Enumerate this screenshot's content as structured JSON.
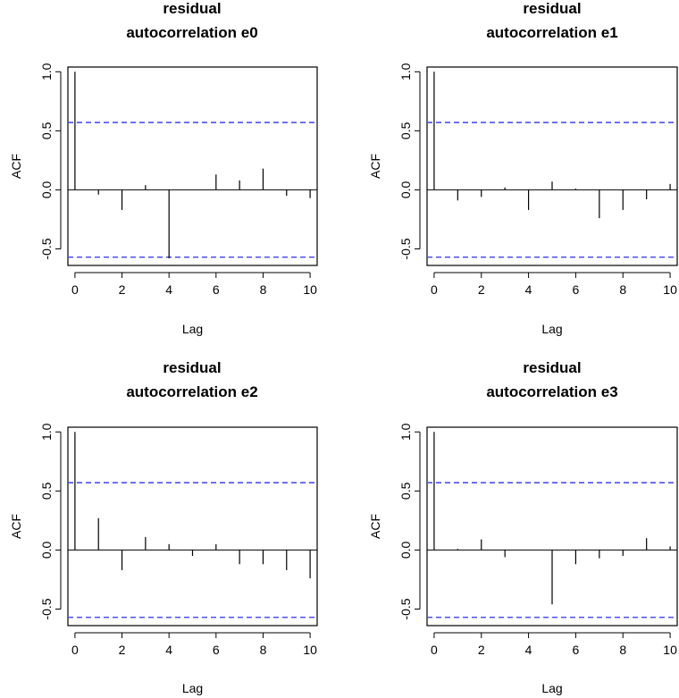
{
  "chart_data": [
    {
      "type": "bar",
      "title_lines": [
        "residual",
        "autocorrelation e0"
      ],
      "xlabel": "Lag",
      "ylabel": "ACF",
      "x": [
        0,
        1,
        2,
        3,
        4,
        5,
        6,
        7,
        8,
        9,
        10
      ],
      "values": [
        1.0,
        -0.04,
        -0.17,
        0.04,
        -0.58,
        0.0,
        0.13,
        0.08,
        0.18,
        -0.05,
        -0.07
      ],
      "confidence_band": [
        -0.57,
        0.57
      ],
      "xlim": [
        -0.3,
        10.3
      ],
      "ylim": [
        -0.64,
        1.04
      ],
      "xticks": [
        0,
        2,
        4,
        6,
        8,
        10
      ],
      "xtick_labels": [
        "0",
        "2",
        "4",
        "6",
        "8",
        "10"
      ],
      "yticks": [
        -0.5,
        0.0,
        0.5,
        1.0
      ],
      "ytick_labels": [
        "-0.5",
        "0.0",
        "0.5",
        "1.0"
      ],
      "grid": false,
      "colors": {
        "band": "#4f4ff5",
        "spike": "#000000"
      }
    },
    {
      "type": "bar",
      "title_lines": [
        "residual",
        "autocorrelation e1"
      ],
      "xlabel": "Lag",
      "ylabel": "ACF",
      "x": [
        0,
        1,
        2,
        3,
        4,
        5,
        6,
        7,
        8,
        9,
        10
      ],
      "values": [
        1.0,
        -0.09,
        -0.06,
        0.02,
        -0.17,
        0.07,
        0.01,
        -0.24,
        -0.17,
        -0.08,
        0.05
      ],
      "confidence_band": [
        -0.57,
        0.57
      ],
      "xlim": [
        -0.3,
        10.3
      ],
      "ylim": [
        -0.64,
        1.04
      ],
      "xticks": [
        0,
        2,
        4,
        6,
        8,
        10
      ],
      "xtick_labels": [
        "0",
        "2",
        "4",
        "6",
        "8",
        "10"
      ],
      "yticks": [
        -0.5,
        0.0,
        0.5,
        1.0
      ],
      "ytick_labels": [
        "-0.5",
        "0.0",
        "0.5",
        "1.0"
      ],
      "grid": false,
      "colors": {
        "band": "#4f4ff5",
        "spike": "#000000"
      }
    },
    {
      "type": "bar",
      "title_lines": [
        "residual",
        "autocorrelation e2"
      ],
      "xlabel": "Lag",
      "ylabel": "ACF",
      "x": [
        0,
        1,
        2,
        3,
        4,
        5,
        6,
        7,
        8,
        9,
        10
      ],
      "values": [
        1.0,
        0.27,
        -0.17,
        0.11,
        0.05,
        -0.05,
        0.05,
        -0.12,
        -0.12,
        -0.17,
        -0.24
      ],
      "confidence_band": [
        -0.57,
        0.57
      ],
      "xlim": [
        -0.3,
        10.3
      ],
      "ylim": [
        -0.64,
        1.04
      ],
      "xticks": [
        0,
        2,
        4,
        6,
        8,
        10
      ],
      "xtick_labels": [
        "0",
        "2",
        "4",
        "6",
        "8",
        "10"
      ],
      "yticks": [
        -0.5,
        0.0,
        0.5,
        1.0
      ],
      "ytick_labels": [
        "-0.5",
        "0.0",
        "0.5",
        "1.0"
      ],
      "grid": false,
      "colors": {
        "band": "#4f4ff5",
        "spike": "#000000"
      }
    },
    {
      "type": "bar",
      "title_lines": [
        "residual",
        "autocorrelation e3"
      ],
      "xlabel": "Lag",
      "ylabel": "ACF",
      "x": [
        0,
        1,
        2,
        3,
        4,
        5,
        6,
        7,
        8,
        9,
        10
      ],
      "values": [
        1.0,
        0.01,
        0.09,
        -0.06,
        0.0,
        -0.46,
        -0.12,
        -0.07,
        -0.05,
        0.1,
        0.03
      ],
      "confidence_band": [
        -0.57,
        0.57
      ],
      "xlim": [
        -0.3,
        10.3
      ],
      "ylim": [
        -0.64,
        1.04
      ],
      "xticks": [
        0,
        2,
        4,
        6,
        8,
        10
      ],
      "xtick_labels": [
        "0",
        "2",
        "4",
        "6",
        "8",
        "10"
      ],
      "yticks": [
        -0.5,
        0.0,
        0.5,
        1.0
      ],
      "ytick_labels": [
        "-0.5",
        "0.0",
        "0.5",
        "1.0"
      ],
      "grid": false,
      "colors": {
        "band": "#4f4ff5",
        "spike": "#000000"
      }
    }
  ]
}
